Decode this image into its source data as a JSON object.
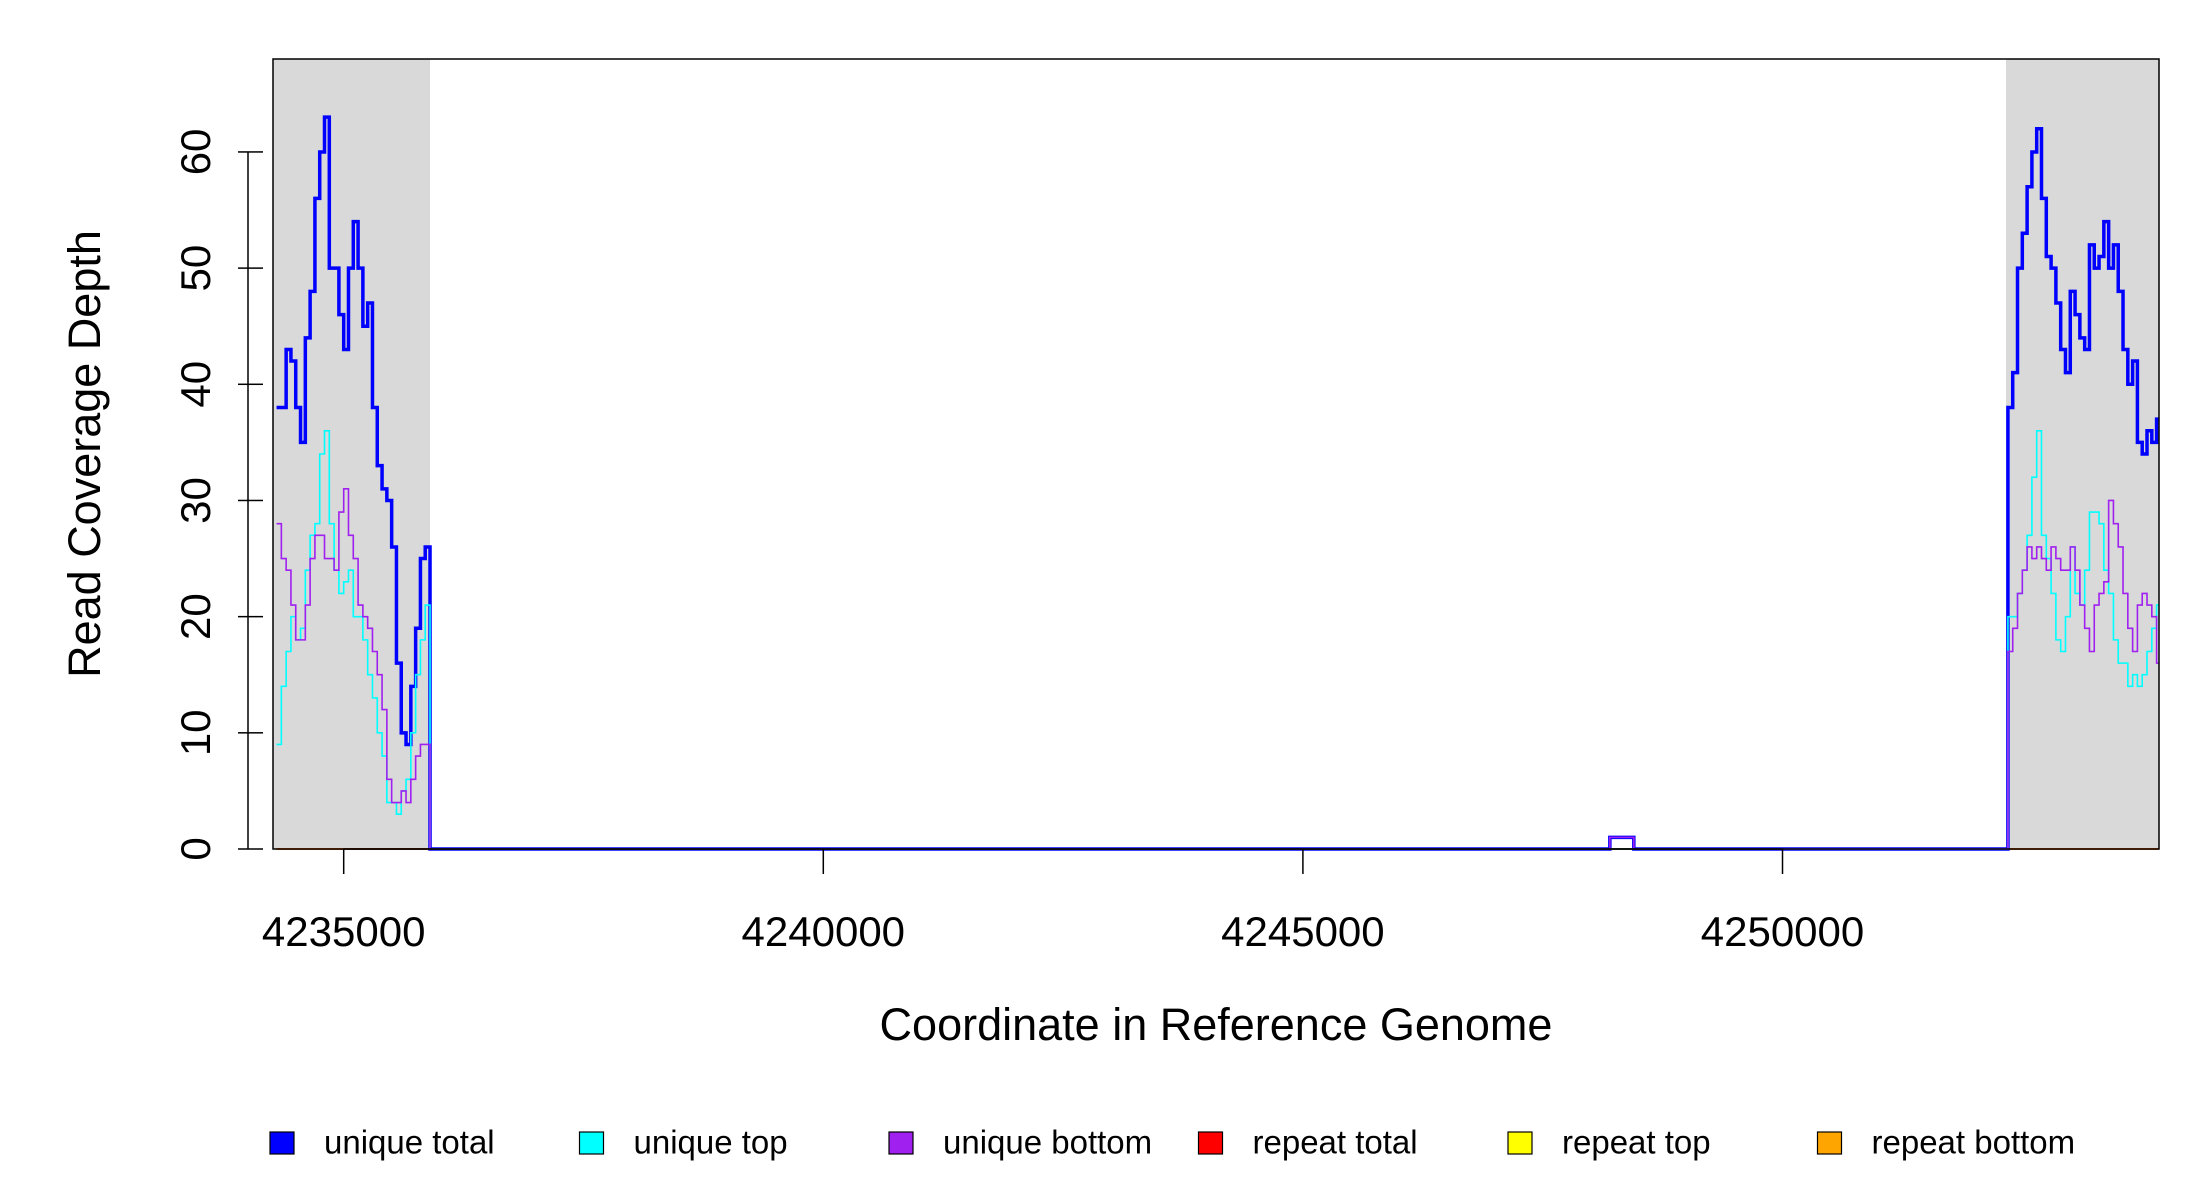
{
  "chart_data": {
    "type": "step",
    "xlabel": "Coordinate in Reference Genome",
    "ylabel": "Read Coverage Depth",
    "xlim": [
      4234263,
      4253925
    ],
    "ylim": [
      0,
      68
    ],
    "xticks": [
      4235000,
      4240000,
      4245000,
      4250000
    ],
    "yticks": [
      0,
      10,
      20,
      30,
      40,
      50,
      60
    ],
    "shaded_regions": [
      [
        4234263,
        4235900
      ],
      [
        4252330,
        4253925
      ]
    ],
    "shade_color": "#d9d9d9",
    "x": [
      4234300,
      4234350,
      4234400,
      4234450,
      4234500,
      4234550,
      4234600,
      4234650,
      4234700,
      4234750,
      4234800,
      4234850,
      4234900,
      4234950,
      4235000,
      4235050,
      4235100,
      4235150,
      4235200,
      4235250,
      4235300,
      4235350,
      4235400,
      4235450,
      4235500,
      4235550,
      4235600,
      4235650,
      4235700,
      4235750,
      4235800,
      4235850,
      4235900,
      4248200,
      4248450,
      4252300,
      4252350,
      4252400,
      4252450,
      4252500,
      4252550,
      4252600,
      4252650,
      4252700,
      4252750,
      4252800,
      4252850,
      4252900,
      4252950,
      4253000,
      4253050,
      4253100,
      4253150,
      4253200,
      4253250,
      4253300,
      4253350,
      4253400,
      4253450,
      4253500,
      4253550,
      4253600,
      4253650,
      4253700,
      4253750,
      4253800,
      4253850,
      4253900
    ],
    "series": [
      {
        "name": "unique total",
        "color": "#0000ff",
        "values": [
          38,
          38,
          43,
          42,
          38,
          35,
          44,
          48,
          56,
          60,
          63,
          50,
          50,
          46,
          43,
          50,
          54,
          50,
          45,
          47,
          38,
          33,
          31,
          30,
          26,
          16,
          10,
          9,
          14,
          19,
          25,
          26,
          0,
          1,
          0,
          0,
          38,
          41,
          50,
          53,
          57,
          60,
          62,
          56,
          51,
          50,
          47,
          43,
          41,
          48,
          46,
          44,
          43,
          52,
          50,
          51,
          54,
          50,
          52,
          48,
          43,
          40,
          42,
          35,
          34,
          36,
          35,
          37
        ]
      },
      {
        "name": "unique top",
        "color": "#00ffff",
        "values": [
          9,
          14,
          17,
          20,
          18,
          19,
          24,
          27,
          28,
          34,
          36,
          28,
          24,
          22,
          23,
          24,
          20,
          20,
          18,
          15,
          13,
          10,
          8,
          4,
          4,
          3,
          5,
          6,
          10,
          15,
          18,
          21,
          0,
          0,
          0,
          0,
          20,
          20,
          22,
          24,
          27,
          32,
          36,
          27,
          25,
          22,
          18,
          17,
          20,
          26,
          22,
          21,
          24,
          29,
          29,
          28,
          24,
          22,
          18,
          16,
          16,
          14,
          15,
          14,
          15,
          17,
          19,
          21
        ]
      },
      {
        "name": "unique bottom",
        "color": "#a020f0",
        "values": [
          28,
          25,
          24,
          21,
          18,
          18,
          21,
          25,
          27,
          27,
          25,
          25,
          24,
          29,
          31,
          27,
          25,
          21,
          20,
          19,
          17,
          15,
          12,
          6,
          4,
          4,
          5,
          4,
          6,
          8,
          9,
          9,
          0,
          1,
          0,
          0,
          17,
          19,
          22,
          24,
          26,
          25,
          26,
          25,
          24,
          26,
          25,
          24,
          24,
          26,
          24,
          21,
          19,
          17,
          21,
          22,
          23,
          30,
          28,
          26,
          22,
          19,
          17,
          21,
          22,
          21,
          20,
          16
        ]
      },
      {
        "name": "repeat total",
        "color": "#ff0000",
        "values": [
          0,
          0,
          0,
          0,
          0,
          0,
          0,
          0,
          0,
          0,
          0,
          0,
          0,
          0,
          0,
          0,
          0,
          0,
          0,
          0,
          0,
          0,
          0,
          0,
          0,
          0,
          0,
          0,
          0,
          0,
          0,
          0,
          0,
          0,
          0,
          0,
          0,
          0,
          0,
          0,
          0,
          0,
          0,
          0,
          0,
          0,
          0,
          0,
          0,
          0,
          0,
          0,
          0,
          0,
          0,
          0,
          0,
          0,
          0,
          0,
          0,
          0,
          0,
          0,
          0,
          0,
          0,
          0
        ]
      },
      {
        "name": "repeat top",
        "color": "#ffff00",
        "values": [
          0,
          0,
          0,
          0,
          0,
          0,
          0,
          0,
          0,
          0,
          0,
          0,
          0,
          0,
          0,
          0,
          0,
          0,
          0,
          0,
          0,
          0,
          0,
          0,
          0,
          0,
          0,
          0,
          0,
          0,
          0,
          0,
          0,
          0,
          0,
          0,
          0,
          0,
          0,
          0,
          0,
          0,
          0,
          0,
          0,
          0,
          0,
          0,
          0,
          0,
          0,
          0,
          0,
          0,
          0,
          0,
          0,
          0,
          0,
          0,
          0,
          0,
          0,
          0,
          0,
          0,
          0,
          0
        ]
      },
      {
        "name": "repeat bottom",
        "color": "#ffa500",
        "values": [
          0,
          0,
          0,
          0,
          0,
          0,
          0,
          0,
          0,
          0,
          0,
          0,
          0,
          0,
          0,
          0,
          0,
          0,
          0,
          0,
          0,
          0,
          0,
          0,
          0,
          0,
          0,
          0,
          0,
          0,
          0,
          0,
          0,
          0,
          0,
          0,
          0,
          0,
          0,
          0,
          0,
          0,
          0,
          0,
          0,
          0,
          0,
          0,
          0,
          0,
          0,
          0,
          0,
          0,
          0,
          0,
          0,
          0,
          0,
          0,
          0,
          0,
          0,
          0,
          0,
          0,
          0,
          0
        ]
      }
    ]
  }
}
